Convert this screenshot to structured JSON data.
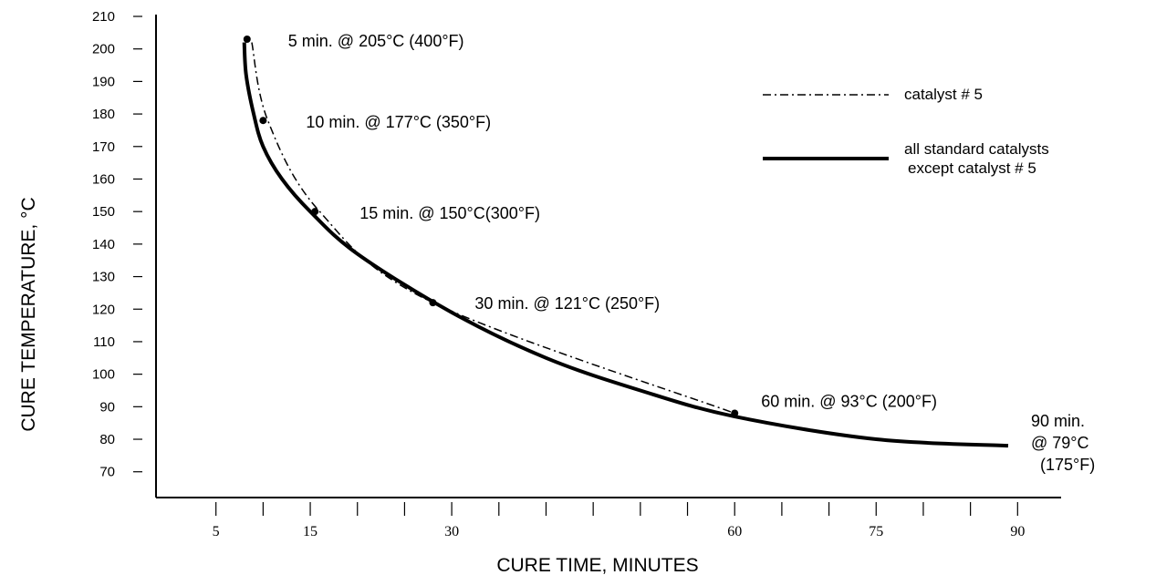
{
  "chart_data": {
    "type": "line",
    "title": "",
    "xlabel": "CURE TIME, MINUTES",
    "ylabel": "CURE TEMPERATURE, °C",
    "xlim": [
      0,
      95
    ],
    "ylim": [
      66,
      210
    ],
    "x_ticks": [
      5,
      15,
      30,
      60,
      75,
      90
    ],
    "y_ticks": [
      70,
      80,
      90,
      100,
      110,
      120,
      130,
      140,
      150,
      160,
      170,
      180,
      190,
      200,
      210
    ],
    "grid": false,
    "legend_position": "top-right",
    "series": [
      {
        "name": "catalyst # 5",
        "style": "dash-dot",
        "points": [
          [
            8.8,
            202
          ],
          [
            10.5,
            178
          ],
          [
            16,
            150
          ],
          [
            28,
            122
          ],
          [
            60,
            88
          ]
        ]
      },
      {
        "name": "all standard catalysts except catalyst # 5",
        "style": "solid",
        "points": [
          [
            8,
            202
          ],
          [
            8.2,
            192
          ],
          [
            9,
            180
          ],
          [
            10,
            170
          ],
          [
            12,
            160
          ],
          [
            15,
            150
          ],
          [
            20,
            137
          ],
          [
            30,
            119
          ],
          [
            40,
            105
          ],
          [
            50,
            95
          ],
          [
            60,
            87
          ],
          [
            75,
            80
          ],
          [
            89,
            78
          ]
        ]
      }
    ],
    "annotations": [
      {
        "x": 8.3,
        "y": 203,
        "label": "5 min. @ 205°C (400°F)",
        "marker": true
      },
      {
        "x": 10,
        "y": 178,
        "label": "10 min. @ 177°C (350°F)",
        "marker": true
      },
      {
        "x": 15.5,
        "y": 150,
        "label": "15 min. @ 150°C(300°F)",
        "marker": true
      },
      {
        "x": 28,
        "y": 122,
        "label": "30 min. @ 121°C (250°F)",
        "marker": true
      },
      {
        "x": 60,
        "y": 88,
        "label": "60 min. @ 93°C (200°F)",
        "marker": true
      },
      {
        "x": 89,
        "y": 78,
        "label_lines": [
          "90 min.",
          "@ 79°C",
          "(175°F)"
        ],
        "marker": false
      }
    ],
    "legend": [
      {
        "label_lines": [
          "catalyst # 5"
        ],
        "style": "dash-dot"
      },
      {
        "label_lines": [
          "all standard catalysts",
          "except catalyst # 5"
        ],
        "style": "solid"
      }
    ]
  }
}
